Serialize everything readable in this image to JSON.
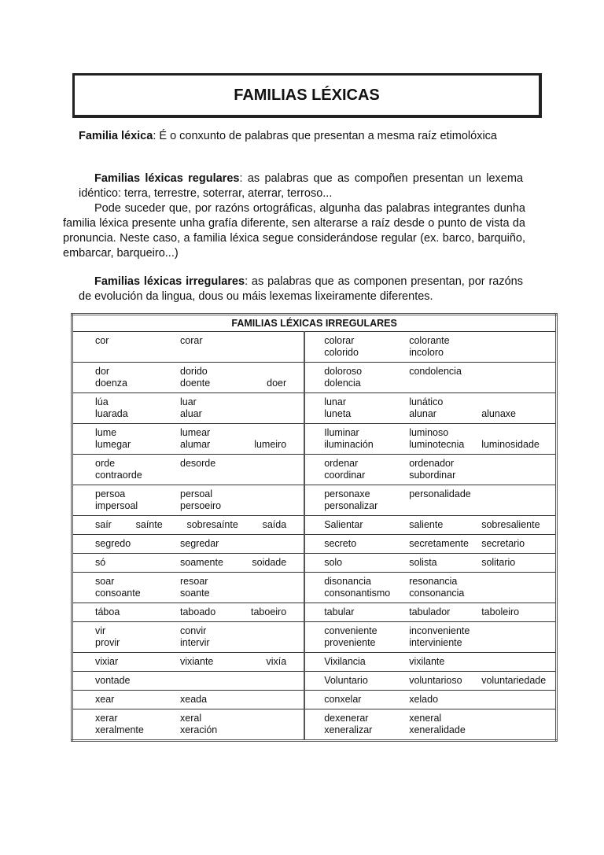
{
  "title": "FAMILIAS LÉXICAS",
  "p1": {
    "term": "Familia léxica",
    "text": ":   É o conxunto  de palabras que  presentan a mesma raíz etimolóxica"
  },
  "p2": {
    "term": "Familias léxicas regulares",
    "text": ":  as palabras que as  compoñen presentan un lexema idéntico:  terra, terrestre, soterrar, aterrar, terroso..."
  },
  "p3": {
    "text": "Pode suceder que, por razóns  ortográficas, algunha das palabras integrantes dunha familia léxica presente unha grafía diferente, sen  alterarse a raíz  desde o punto de vista da pronuncia. Neste caso, a familia léxica segue considerándose regular (ex. barco, barquiño, embarcar, barqueiro...)"
  },
  "p4": {
    "term": "Familias léxicas irregulares",
    "text": ": as palabras que as componen presentan, por razóns de  evolución da lingua, dous ou máis lexemas lixeiramente diferentes."
  },
  "table": {
    "header": "FAMILIAS LÉXICAS IRREGULARES",
    "rows": [
      {
        "left": [
          [
            "cor",
            "corar"
          ]
        ],
        "right": [
          [
            "colorar",
            "colorante"
          ],
          [
            "colorido",
            "incoloro"
          ]
        ]
      },
      {
        "left": [
          [
            "dor",
            "dorido"
          ],
          [
            "doenza",
            "doente",
            "doer"
          ]
        ],
        "right": [
          [
            "doloroso",
            "condolencia"
          ],
          [
            "dolencia"
          ]
        ]
      },
      {
        "left": [
          [
            "lúa",
            "luar"
          ],
          [
            "luarada",
            "aluar"
          ]
        ],
        "right": [
          [
            "lunar",
            "lunático"
          ],
          [
            "luneta",
            "alunar",
            "alunaxe"
          ]
        ]
      },
      {
        "left": [
          [
            "lume",
            "lumear"
          ],
          [
            "lumegar",
            "alumar",
            "lumeiro"
          ]
        ],
        "right": [
          [
            "Iluminar",
            "luminoso"
          ],
          [
            "iluminación",
            "luminotecnia",
            "luminosidade"
          ]
        ]
      },
      {
        "left": [
          [
            "orde",
            "desorde"
          ],
          [
            "contraorde"
          ]
        ],
        "right": [
          [
            "ordenar",
            "ordenador"
          ],
          [
            "coordinar",
            "subordinar"
          ]
        ]
      },
      {
        "left": [
          [
            "persoa",
            "persoal"
          ],
          [
            "impersoal",
            "persoeiro"
          ]
        ],
        "right": [
          [
            "personaxe",
            "personalidade"
          ],
          [
            "personalizar"
          ]
        ]
      },
      {
        "left": [
          [
            "saír",
            "saínte",
            "sobresaínte",
            "saída"
          ]
        ],
        "right": [
          [
            "Salientar",
            "saliente",
            "sobresaliente"
          ]
        ]
      },
      {
        "left": [
          [
            "segredo",
            "segredar"
          ]
        ],
        "right": [
          [
            "secreto",
            "secretamente",
            "secretario"
          ]
        ]
      },
      {
        "left": [
          [
            "só",
            "soamente",
            "soidade"
          ]
        ],
        "right": [
          [
            "solo",
            "solista",
            "solitario"
          ]
        ]
      },
      {
        "left": [
          [
            "soar",
            "resoar"
          ],
          [
            "consoante",
            "soante"
          ]
        ],
        "right": [
          [
            "disonancia",
            "resonancia"
          ],
          [
            "consonantismo",
            "consonancia"
          ]
        ]
      },
      {
        "left": [
          [
            "táboa",
            "taboado",
            "taboeiro"
          ]
        ],
        "right": [
          [
            "tabular",
            "tabulador",
            "taboleiro"
          ]
        ]
      },
      {
        "left": [
          [
            "vir",
            "convir"
          ],
          [
            "provir",
            "intervir"
          ]
        ],
        "right": [
          [
            "conveniente",
            "inconveniente"
          ],
          [
            "proveniente",
            "interviniente"
          ]
        ]
      },
      {
        "left": [
          [
            "vixiar",
            "vixiante",
            "vixía"
          ]
        ],
        "right": [
          [
            "Vixilancia",
            "vixilante"
          ]
        ]
      },
      {
        "left": [
          [
            "vontade"
          ]
        ],
        "right": [
          [
            "Voluntario",
            "voluntarioso",
            "voluntariedade"
          ]
        ]
      },
      {
        "left": [
          [
            "xear",
            "xeada"
          ]
        ],
        "right": [
          [
            "conxelar",
            "xelado"
          ]
        ]
      },
      {
        "left": [
          [
            "xerar",
            "xeral"
          ],
          [
            "xeralmente",
            "xeración"
          ]
        ],
        "right": [
          [
            "dexenerar",
            "xeneral"
          ],
          [
            "xeneralizar",
            "xeneralidade"
          ]
        ]
      }
    ]
  }
}
